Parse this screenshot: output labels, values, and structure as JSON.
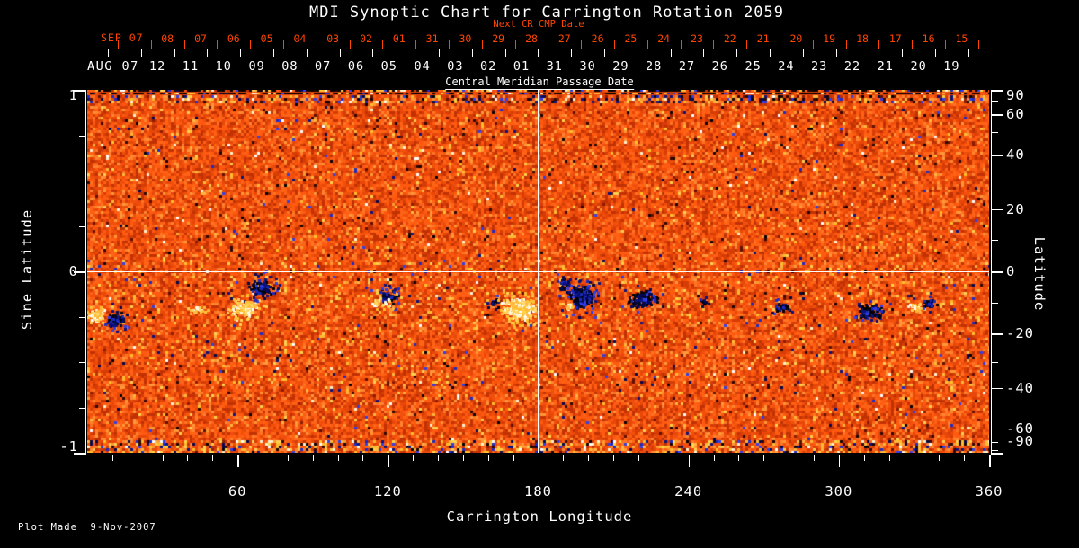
{
  "colors": {
    "background": "#000000",
    "foreground": "#ffffff",
    "accent_red": "#ff4500"
  },
  "title": "MDI Synoptic Chart for Carrington Rotation 2059",
  "top_axis": {
    "next_cr_label": "Next CR CMP Date",
    "cmp_label": "Central Meridian Passage Date",
    "red_month_label": "SEP 07",
    "red_days": [
      "08",
      "07",
      "06",
      "05",
      "04",
      "03",
      "02",
      "01",
      "31",
      "30",
      "29",
      "28",
      "27",
      "26",
      "25",
      "24",
      "23",
      "22",
      "21",
      "20",
      "19",
      "18",
      "17",
      "16",
      "15"
    ],
    "white_month_label": "AUG 07",
    "white_days": [
      "12",
      "11",
      "10",
      "09",
      "08",
      "07",
      "06",
      "05",
      "04",
      "03",
      "02",
      "01",
      "31",
      "30",
      "29",
      "28",
      "27",
      "26",
      "25",
      "24",
      "23",
      "22",
      "21",
      "20",
      "19"
    ]
  },
  "left_axis": {
    "label": "Sine Latitude",
    "major_ticks": [
      {
        "value": 1,
        "label": "1"
      },
      {
        "value": 0,
        "label": "0"
      },
      {
        "value": -1,
        "label": "-1"
      }
    ],
    "minor_ticks": [
      0.75,
      0.5,
      0.25,
      -0.25,
      -0.5,
      -0.75
    ]
  },
  "right_axis": {
    "label": "Latitude",
    "labeled_ticks": [
      {
        "value": 90,
        "label": "90"
      },
      {
        "value": 60,
        "label": "60"
      },
      {
        "value": 40,
        "label": "40"
      },
      {
        "value": 20,
        "label": "20"
      },
      {
        "value": 0,
        "label": "0"
      },
      {
        "value": -20,
        "label": "-20"
      },
      {
        "value": -40,
        "label": "-40"
      },
      {
        "value": -60,
        "label": "-60"
      },
      {
        "value": -90,
        "label": "-90"
      }
    ],
    "minor_step_deg": 10
  },
  "bottom_axis": {
    "label": "Carrington Longitude",
    "major_ticks": [
      {
        "value": 60,
        "label": "60"
      },
      {
        "value": 120,
        "label": "120"
      },
      {
        "value": 180,
        "label": "180"
      },
      {
        "value": 240,
        "label": "240"
      },
      {
        "value": 300,
        "label": "300"
      },
      {
        "value": 360,
        "label": "360"
      }
    ],
    "minor_step_deg": 10
  },
  "footer": "Plot Made  9-Nov-2007",
  "chart_data": {
    "type": "heatmap",
    "title": "MDI Synoptic Chart for Carrington Rotation 2059",
    "xlabel": "Carrington Longitude",
    "ylabel": "Sine Latitude",
    "ylabel_right": "Latitude",
    "x_range": [
      0,
      360
    ],
    "y_range_sine": [
      -1,
      1
    ],
    "latitude_labeled_ticks": [
      90,
      60,
      40,
      20,
      0,
      -20,
      -40,
      -60,
      -90
    ],
    "crosshair": {
      "longitude": 180,
      "sine_latitude": 0
    },
    "cmp_dates_white": "AUG 12 2007 (left) decreasing to JUL 19 2007 (right)",
    "next_cr_cmp_dates_red": "SEP 08 2007 (left) decreasing to AUG 15 2007 (right)",
    "colormap": {
      "base": [
        "#c23104",
        "#d63d06",
        "#e84709",
        "#f1500c",
        "#ff5a10",
        "#ff6316"
      ],
      "light": [
        "#ff7524",
        "#ff8530",
        "#ff9838"
      ],
      "hot": [
        "#ffb83c",
        "#ffd14f",
        "#ffbf2e"
      ],
      "white": [
        "#ffffff",
        "#fff2cf"
      ],
      "dark": [
        "#8c1c02",
        "#5e1000",
        "#2e0800"
      ],
      "black": [
        "#000000",
        "#140301"
      ],
      "blue": [
        "#0a1280",
        "#1c2cc8",
        "#3040e8",
        "#000850"
      ],
      "negative_polarity": [
        "#000618",
        "#0a1278",
        "#1b2aba",
        "#060a3c",
        "#000000"
      ],
      "positive_polarity": [
        "#ffffff",
        "#fff6da",
        "#ffd96a",
        "#ffc13c"
      ]
    },
    "active_regions": [
      {
        "lon": 3,
        "sin_lat": -0.23,
        "rx_deg": 4,
        "ry_sin": 0.05,
        "polarity": "positive",
        "strength": 0.9
      },
      {
        "lon": 11,
        "sin_lat": -0.26,
        "rx_deg": 4.5,
        "ry_sin": 0.05,
        "polarity": "negative",
        "strength": 0.85
      },
      {
        "lon": 44,
        "sin_lat": -0.21,
        "rx_deg": 5,
        "ry_sin": 0.035,
        "polarity": "positive",
        "strength": 0.3
      },
      {
        "lon": 62,
        "sin_lat": -0.2,
        "rx_deg": 6,
        "ry_sin": 0.055,
        "polarity": "positive",
        "strength": 0.95
      },
      {
        "lon": 69,
        "sin_lat": -0.09,
        "rx_deg": 5.5,
        "ry_sin": 0.05,
        "polarity": "negative",
        "strength": 1.1
      },
      {
        "lon": 120,
        "sin_lat": -0.13,
        "rx_deg": 7,
        "ry_sin": 0.05,
        "polarity": "negative",
        "strength": 0.3
      },
      {
        "lon": 117,
        "sin_lat": -0.17,
        "rx_deg": 6,
        "ry_sin": 0.04,
        "polarity": "positive",
        "strength": 0.3
      },
      {
        "lon": 162,
        "sin_lat": -0.17,
        "rx_deg": 2.5,
        "ry_sin": 0.035,
        "polarity": "negative",
        "strength": 0.5
      },
      {
        "lon": 172,
        "sin_lat": -0.2,
        "rx_deg": 8,
        "ry_sin": 0.085,
        "polarity": "positive",
        "strength": 1.15
      },
      {
        "lon": 190,
        "sin_lat": -0.06,
        "rx_deg": 3,
        "ry_sin": 0.045,
        "polarity": "negative",
        "strength": 0.7
      },
      {
        "lon": 197,
        "sin_lat": -0.13,
        "rx_deg": 6.5,
        "ry_sin": 0.075,
        "polarity": "negative",
        "strength": 1.2
      },
      {
        "lon": 192,
        "sin_lat": -0.19,
        "rx_deg": 1.6,
        "ry_sin": 0.022,
        "polarity": "positive",
        "strength": 1.0
      },
      {
        "lon": 221,
        "sin_lat": -0.15,
        "rx_deg": 7,
        "ry_sin": 0.055,
        "polarity": "negative",
        "strength": 0.85
      },
      {
        "lon": 246,
        "sin_lat": -0.16,
        "rx_deg": 2.5,
        "ry_sin": 0.03,
        "polarity": "negative",
        "strength": 0.5
      },
      {
        "lon": 277,
        "sin_lat": -0.2,
        "rx_deg": 5,
        "ry_sin": 0.045,
        "polarity": "negative",
        "strength": 0.4
      },
      {
        "lon": 313,
        "sin_lat": -0.22,
        "rx_deg": 7,
        "ry_sin": 0.055,
        "polarity": "negative",
        "strength": 0.55
      },
      {
        "lon": 330,
        "sin_lat": -0.19,
        "rx_deg": 3,
        "ry_sin": 0.035,
        "polarity": "positive",
        "strength": 0.7
      },
      {
        "lon": 336,
        "sin_lat": -0.17,
        "rx_deg": 3.5,
        "ry_sin": 0.04,
        "polarity": "negative",
        "strength": 0.6
      }
    ],
    "notes": "Speckled orange full-Sun magnetic field map; noisy streaked bands at both poles; white crosshair lines at longitude 180 and sine latitude 0"
  }
}
